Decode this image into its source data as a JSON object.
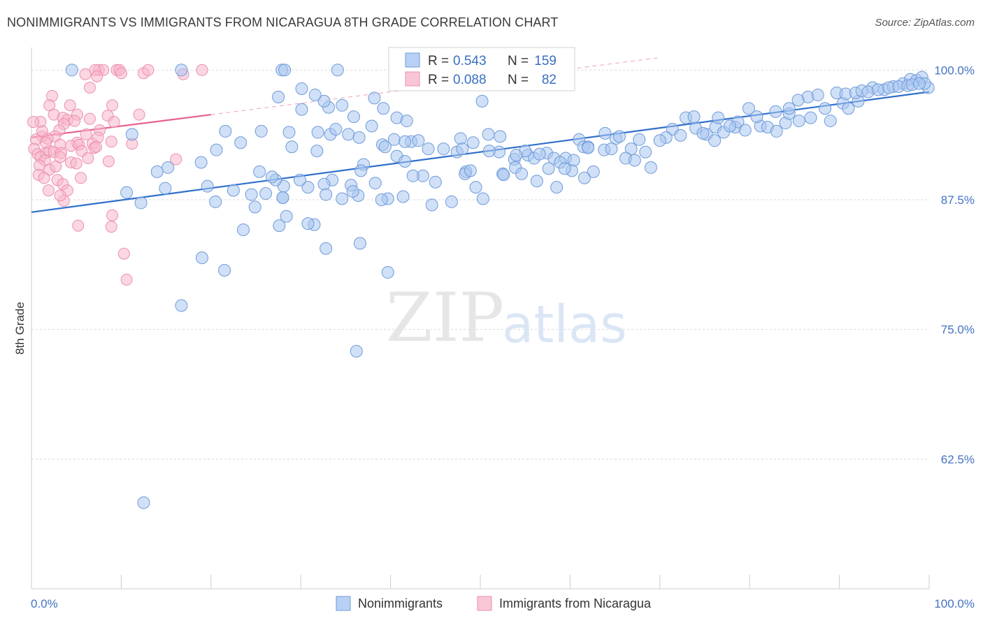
{
  "title": "NONIMMIGRANTS VS IMMIGRANTS FROM NICARAGUA 8TH GRADE CORRELATION CHART",
  "source": "Source: ZipAtlas.com",
  "watermark": {
    "zip": "ZIP",
    "atlas": "atlas"
  },
  "colors": {
    "blue_fill": "#a9c6f0",
    "blue_stroke": "#6f9bd9",
    "blue_line": "#2f6fcc",
    "pink_fill": "#f7b7cb",
    "pink_stroke": "#ec8fae",
    "pink_line": "#e8628e",
    "grid": "#d9d9d9",
    "tick_text": "#4472c4"
  },
  "stats_box": {
    "rows": [
      {
        "r_label": "R =",
        "r_value": "0.543",
        "n_label": "N =",
        "n_value": "159"
      },
      {
        "r_label": "R =",
        "r_value": "0.088",
        "n_label": "N =",
        "n_value": "82"
      }
    ]
  },
  "legend": {
    "items": [
      "Nonimmigrants",
      "Immigrants from Nicaragua"
    ]
  },
  "chart_data": {
    "type": "scatter",
    "title": "NONIMMIGRANTS VS IMMIGRANTS FROM NICARAGUA 8TH GRADE CORRELATION CHART",
    "xlabel": "",
    "ylabel": "8th Grade",
    "xlim": [
      0,
      100
    ],
    "ylim": [
      50,
      101.5
    ],
    "x_tick_labels": [
      "0.0%",
      "100.0%"
    ],
    "y_ticks": [
      62.5,
      75.0,
      87.5,
      100.0
    ],
    "y_tick_labels": [
      "62.5%",
      "75.0%",
      "87.5%",
      "100.0%"
    ],
    "grid": true,
    "legend_position": "bottom-center",
    "series": [
      {
        "name": "Nonimmigrants",
        "trend": {
          "x": [
            0,
            100
          ],
          "y": [
            86.3,
            97.9
          ]
        },
        "points": [
          [
            4.5,
            100
          ],
          [
            16.7,
            100
          ],
          [
            27.9,
            100
          ],
          [
            28.2,
            100
          ],
          [
            34.1,
            100
          ],
          [
            30.1,
            98.2
          ],
          [
            27.5,
            97.4
          ],
          [
            34.6,
            96.6
          ],
          [
            38.2,
            97.3
          ],
          [
            39.2,
            96.3
          ],
          [
            50.2,
            97.0
          ],
          [
            35.9,
            95.5
          ],
          [
            21.6,
            94.1
          ],
          [
            11.2,
            93.8
          ],
          [
            25.6,
            94.1
          ],
          [
            23.3,
            93.0
          ],
          [
            40.7,
            95.4
          ],
          [
            37.9,
            94.6
          ],
          [
            35.3,
            93.8
          ],
          [
            41.8,
            95.1
          ],
          [
            28.7,
            94.0
          ],
          [
            20.6,
            92.3
          ],
          [
            31.9,
            94.0
          ],
          [
            33.3,
            93.8
          ],
          [
            42.3,
            93.1
          ],
          [
            43.1,
            93.2
          ],
          [
            36.5,
            93.5
          ],
          [
            40.4,
            93.3
          ],
          [
            47.8,
            93.4
          ],
          [
            50.9,
            93.8
          ],
          [
            52.2,
            93.6
          ],
          [
            49.2,
            93.0
          ],
          [
            52.1,
            92.1
          ],
          [
            47.4,
            92.1
          ],
          [
            48.0,
            92.4
          ],
          [
            51.0,
            92.2
          ],
          [
            55.3,
            91.8
          ],
          [
            53.8,
            91.4
          ],
          [
            57.4,
            92.0
          ],
          [
            56.0,
            91.5
          ],
          [
            58.2,
            91.5
          ],
          [
            61.0,
            93.3
          ],
          [
            61.5,
            92.6
          ],
          [
            59.5,
            91.5
          ],
          [
            62.6,
            90.2
          ],
          [
            65.1,
            93.4
          ],
          [
            63.8,
            92.3
          ],
          [
            66.8,
            92.4
          ],
          [
            66.2,
            91.5
          ],
          [
            67.7,
            93.3
          ],
          [
            67.2,
            91.3
          ],
          [
            69.0,
            90.6
          ],
          [
            72.9,
            95.4
          ],
          [
            71.4,
            94.3
          ],
          [
            73.8,
            95.5
          ],
          [
            74.0,
            94.4
          ],
          [
            75.2,
            93.8
          ],
          [
            76.2,
            94.5
          ],
          [
            76.1,
            93.2
          ],
          [
            77.1,
            94.0
          ],
          [
            78.4,
            94.5
          ],
          [
            79.5,
            94.2
          ],
          [
            81.2,
            94.6
          ],
          [
            82.0,
            94.5
          ],
          [
            83.0,
            94.1
          ],
          [
            84.0,
            94.9
          ],
          [
            84.4,
            95.8
          ],
          [
            85.5,
            95.1
          ],
          [
            86.8,
            95.4
          ],
          [
            88.4,
            96.3
          ],
          [
            89.0,
            95.1
          ],
          [
            90.4,
            96.8
          ],
          [
            91.0,
            96.3
          ],
          [
            92.1,
            97.0
          ],
          [
            93.7,
            98.3
          ],
          [
            95.0,
            98.1
          ],
          [
            96.0,
            98.4
          ],
          [
            97.1,
            98.7
          ],
          [
            97.9,
            99.1
          ],
          [
            98.6,
            99.0
          ],
          [
            99.2,
            99.3
          ],
          [
            99.9,
            98.3
          ],
          [
            99.5,
            98.7
          ],
          [
            86.5,
            97.4
          ],
          [
            87.6,
            97.6
          ],
          [
            89.7,
            97.8
          ],
          [
            90.7,
            97.7
          ],
          [
            91.8,
            97.8
          ],
          [
            92.5,
            98.0
          ],
          [
            93.2,
            97.9
          ],
          [
            94.3,
            98.1
          ],
          [
            95.5,
            98.3
          ],
          [
            96.6,
            98.4
          ],
          [
            97.6,
            98.5
          ],
          [
            98.1,
            98.6
          ],
          [
            98.9,
            98.7
          ],
          [
            85.4,
            97.1
          ],
          [
            84.4,
            96.3
          ],
          [
            82.9,
            96.0
          ],
          [
            79.9,
            96.3
          ],
          [
            80.8,
            95.5
          ],
          [
            78.7,
            95.0
          ],
          [
            77.8,
            94.6
          ],
          [
            76.5,
            95.4
          ],
          [
            74.8,
            93.9
          ],
          [
            72.3,
            93.7
          ],
          [
            70.7,
            93.5
          ],
          [
            70.0,
            93.2
          ],
          [
            68.4,
            92.1
          ],
          [
            64.6,
            92.4
          ],
          [
            62.0,
            92.6
          ],
          [
            60.4,
            91.3
          ],
          [
            58.9,
            91.1
          ],
          [
            57.6,
            90.5
          ],
          [
            56.6,
            91.9
          ],
          [
            55.0,
            92.2
          ],
          [
            54.0,
            91.8
          ],
          [
            60.2,
            90.3
          ],
          [
            59.4,
            90.5
          ],
          [
            58.5,
            88.7
          ],
          [
            56.3,
            89.3
          ],
          [
            53.9,
            90.6
          ],
          [
            52.5,
            90.0
          ],
          [
            48.4,
            90.2
          ],
          [
            45.9,
            92.4
          ],
          [
            44.2,
            92.4
          ],
          [
            41.6,
            93.1
          ],
          [
            40.7,
            91.7
          ],
          [
            39.1,
            92.8
          ],
          [
            37.0,
            90.9
          ],
          [
            33.5,
            89.4
          ],
          [
            32.6,
            89.0
          ],
          [
            30.8,
            88.7
          ],
          [
            29.9,
            89.4
          ],
          [
            28.1,
            88.8
          ],
          [
            27.2,
            89.4
          ],
          [
            26.8,
            89.7
          ],
          [
            26.1,
            88.1
          ],
          [
            22.5,
            88.4
          ],
          [
            19.6,
            88.8
          ],
          [
            14.9,
            88.6
          ],
          [
            15.2,
            90.6
          ],
          [
            38.3,
            89.1
          ],
          [
            36.7,
            90.3
          ],
          [
            35.6,
            88.9
          ],
          [
            34.6,
            87.6
          ],
          [
            31.5,
            85.1
          ],
          [
            23.6,
            84.6
          ],
          [
            21.5,
            80.7
          ],
          [
            16.7,
            77.3
          ],
          [
            19.0,
            81.9
          ],
          [
            46.8,
            87.3
          ],
          [
            44.6,
            87.0
          ],
          [
            41.4,
            87.8
          ],
          [
            39.7,
            87.6
          ],
          [
            52.6,
            89.9
          ],
          [
            50.3,
            87.6
          ],
          [
            54.6,
            90.0
          ],
          [
            61.6,
            89.6
          ],
          [
            62.0,
            92.5
          ],
          [
            63.9,
            93.9
          ],
          [
            65.5,
            93.6
          ],
          [
            45.0,
            89.2
          ],
          [
            43.6,
            89.8
          ],
          [
            48.3,
            90.0
          ],
          [
            49.5,
            88.7
          ],
          [
            48.9,
            90.3
          ],
          [
            33.1,
            96.4
          ],
          [
            33.9,
            94.3
          ],
          [
            32.6,
            97.0
          ],
          [
            31.6,
            97.6
          ],
          [
            30.1,
            96.2
          ],
          [
            25.4,
            90.2
          ],
          [
            29.0,
            92.6
          ],
          [
            36.4,
            87.9
          ],
          [
            24.5,
            88.0
          ],
          [
            31.8,
            92.2
          ],
          [
            24.9,
            86.8
          ],
          [
            32.8,
            88.0
          ],
          [
            35.8,
            88.3
          ],
          [
            20.5,
            87.3
          ],
          [
            28.0,
            87.7
          ],
          [
            28.0,
            87.7
          ],
          [
            30.8,
            85.2
          ],
          [
            41.6,
            91.2
          ],
          [
            39.4,
            92.6
          ],
          [
            42.5,
            89.8
          ],
          [
            27.6,
            85.0
          ],
          [
            14.0,
            90.2
          ],
          [
            18.9,
            91.1
          ],
          [
            12.2,
            87.2
          ],
          [
            10.6,
            88.2
          ],
          [
            32.8,
            82.8
          ],
          [
            36.6,
            83.3
          ],
          [
            39.7,
            80.5
          ],
          [
            36.2,
            72.9
          ],
          [
            12.5,
            58.3
          ],
          [
            39.0,
            87.5
          ],
          [
            28.4,
            85.9
          ]
        ]
      },
      {
        "name": "Immigrants from Nicaragua",
        "trend": {
          "x": [
            0,
            70
          ],
          "y": [
            93.5,
            101.2
          ]
        },
        "points": [
          [
            7.5,
            100
          ],
          [
            8.0,
            100
          ],
          [
            9.5,
            100
          ],
          [
            9.8,
            100
          ],
          [
            10.0,
            99.7
          ],
          [
            12.5,
            99.7
          ],
          [
            13.0,
            100
          ],
          [
            16.9,
            99.6
          ],
          [
            19.0,
            100
          ],
          [
            7.1,
            100
          ],
          [
            6.0,
            99.6
          ],
          [
            7.3,
            99.4
          ],
          [
            6.5,
            98.3
          ],
          [
            2.3,
            97.5
          ],
          [
            2.0,
            96.6
          ],
          [
            4.3,
            96.6
          ],
          [
            9.0,
            96.6
          ],
          [
            8.5,
            95.6
          ],
          [
            2.5,
            95.7
          ],
          [
            3.5,
            95.4
          ],
          [
            4.0,
            95.2
          ],
          [
            3.6,
            94.8
          ],
          [
            5.1,
            95.7
          ],
          [
            4.8,
            95.1
          ],
          [
            6.5,
            95.3
          ],
          [
            7.6,
            94.2
          ],
          [
            1.0,
            95.0
          ],
          [
            3.1,
            94.2
          ],
          [
            2.6,
            93.6
          ],
          [
            5.1,
            93.0
          ],
          [
            6.8,
            92.9
          ],
          [
            7.0,
            92.5
          ],
          [
            8.9,
            93.1
          ],
          [
            1.2,
            93.6
          ],
          [
            1.8,
            93.4
          ],
          [
            3.2,
            92.8
          ],
          [
            4.4,
            92.7
          ],
          [
            5.3,
            92.8
          ],
          [
            6.1,
            93.8
          ],
          [
            7.4,
            93.5
          ],
          [
            0.5,
            93.3
          ],
          [
            0.3,
            92.4
          ],
          [
            0.7,
            91.9
          ],
          [
            1.6,
            92.0
          ],
          [
            2.0,
            92.2
          ],
          [
            2.5,
            92.1
          ],
          [
            3.3,
            92.0
          ],
          [
            1.0,
            91.6
          ],
          [
            1.5,
            91.3
          ],
          [
            0.9,
            90.8
          ],
          [
            2.0,
            90.4
          ],
          [
            2.7,
            90.7
          ],
          [
            4.4,
            91.1
          ],
          [
            5.0,
            91.0
          ],
          [
            3.2,
            91.6
          ],
          [
            5.6,
            92.2
          ],
          [
            6.3,
            91.5
          ],
          [
            7.2,
            92.6
          ],
          [
            8.6,
            91.2
          ],
          [
            9.2,
            95.0
          ],
          [
            12.0,
            95.7
          ],
          [
            11.2,
            92.9
          ],
          [
            16.1,
            91.4
          ],
          [
            0.8,
            89.9
          ],
          [
            1.4,
            89.6
          ],
          [
            2.9,
            89.4
          ],
          [
            3.5,
            89.0
          ],
          [
            4.0,
            88.4
          ],
          [
            1.9,
            88.4
          ],
          [
            3.6,
            87.4
          ],
          [
            5.5,
            89.6
          ],
          [
            3.2,
            87.9
          ],
          [
            9.0,
            86.0
          ],
          [
            5.2,
            85.0
          ],
          [
            8.9,
            84.9
          ],
          [
            10.3,
            82.3
          ],
          [
            10.6,
            79.8
          ],
          [
            1.6,
            93.0
          ],
          [
            0.2,
            95.0
          ],
          [
            1.2,
            94.1
          ]
        ]
      }
    ]
  }
}
